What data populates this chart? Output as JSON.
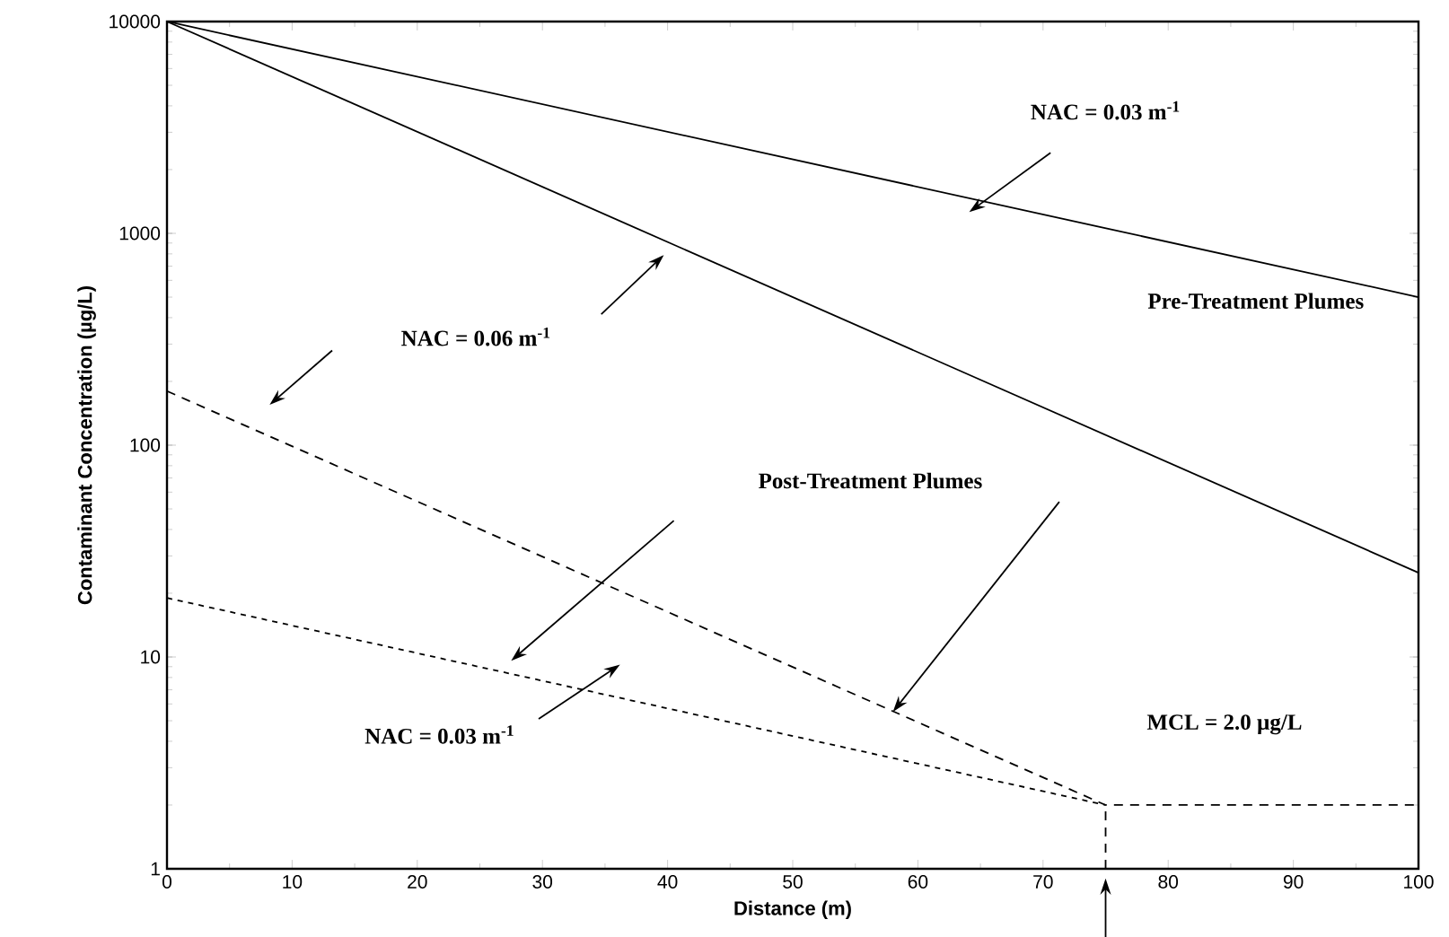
{
  "chart_data": {
    "type": "line",
    "xlabel": "Distance (m)",
    "ylabel": "Contaminant Concentration (µg/L)",
    "log": "y",
    "xlim": [
      0,
      100
    ],
    "xticks": [
      0,
      10,
      20,
      30,
      40,
      50,
      60,
      70,
      80,
      90,
      100
    ],
    "ylim": [
      1,
      10000
    ],
    "yticks": [
      1,
      10,
      100,
      1000,
      10000
    ],
    "series": [
      {
        "color": "#000000",
        "line_style": "solid",
        "x": [
          0,
          100
        ],
        "values": [
          10000,
          500
        ]
      },
      {
        "color": "#000000",
        "line_style": "solid",
        "x": [
          0,
          100
        ],
        "values": [
          10000,
          25
        ]
      },
      {
        "color": "#000000",
        "line_style": "dashed",
        "x": [
          0,
          75,
          100
        ],
        "values": [
          180,
          2,
          2
        ]
      },
      {
        "color": "#000000",
        "line_style": "dotted",
        "x": [
          0,
          75
        ],
        "values": [
          19,
          2
        ]
      },
      {
        "color": "#000000",
        "line_style": "dashed",
        "x": [
          75,
          75
        ],
        "values": [
          1,
          2
        ]
      }
    ],
    "annotations": [
      "NAC = 0.03 m$^{-1}$",
      "NAC = 0.06 m$^{-1}$",
      "Pre-Treatment Plumes",
      "Post-Treatment Plumes",
      "NAC = 0.03 m$^{-1}$",
      "MCL = 2.0 µg/L"
    ]
  }
}
